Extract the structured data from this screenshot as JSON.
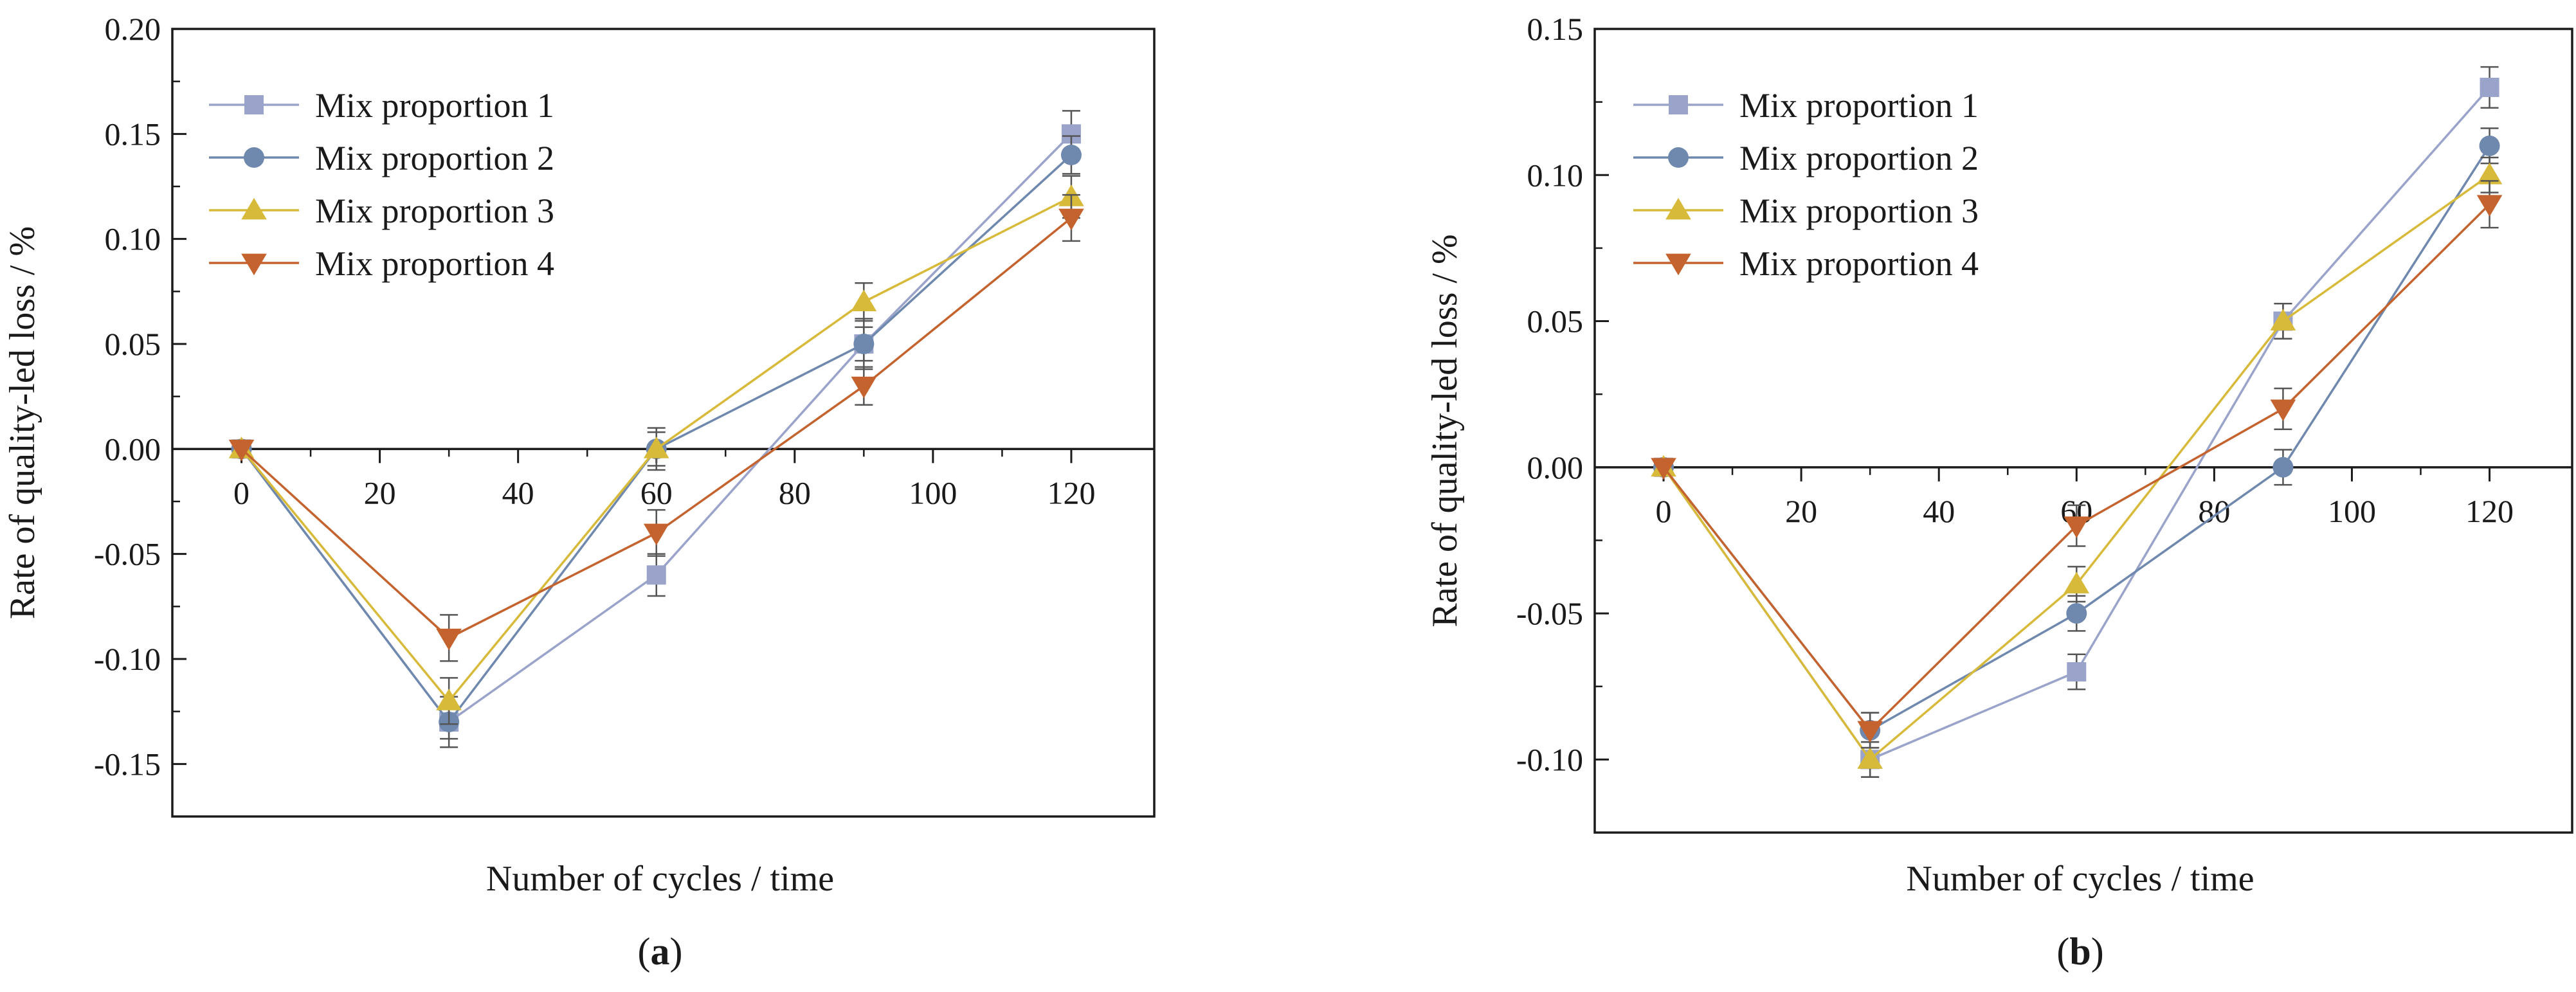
{
  "chart_data": [
    {
      "type": "line",
      "panel_label": "a",
      "xlabel": "Number of cycles / time",
      "ylabel": "Rate of quality-led loss / %",
      "x": [
        0,
        30,
        60,
        90,
        120
      ],
      "xticks": [
        0,
        20,
        40,
        60,
        80,
        100,
        120
      ],
      "xtick_labels": [
        "0",
        "20",
        "40",
        "60",
        "80",
        "100",
        "120"
      ],
      "yticks": [
        -0.15,
        -0.1,
        -0.05,
        0.0,
        0.05,
        0.1,
        0.15,
        0.2
      ],
      "ytick_labels": [
        "-0.15",
        "-0.10",
        "-0.05",
        "0.00",
        "0.05",
        "0.10",
        "0.15",
        "0.20"
      ],
      "xlim": [
        -10,
        132
      ],
      "ylim": [
        -0.175,
        0.2
      ],
      "legend_position": "top-left",
      "series": [
        {
          "name": "Mix proportion 1",
          "marker": "square",
          "color": "#9aa3c9",
          "values": [
            0,
            -0.13,
            -0.06,
            0.05,
            0.15
          ],
          "errors": [
            0,
            0.012,
            0.01,
            0.008,
            0.011
          ]
        },
        {
          "name": "Mix proportion 2",
          "marker": "circle",
          "color": "#6f88ad",
          "values": [
            0,
            -0.13,
            0.0,
            0.05,
            0.14
          ],
          "errors": [
            0,
            0.008,
            0.008,
            0.012,
            0.009
          ]
        },
        {
          "name": "Mix proportion 3",
          "marker": "triangle-up",
          "color": "#d8ba3a",
          "values": [
            0,
            -0.12,
            0.0,
            0.07,
            0.12
          ],
          "errors": [
            0,
            0.011,
            0.01,
            0.009,
            0.01
          ]
        },
        {
          "name": "Mix proportion 4",
          "marker": "triangle-down",
          "color": "#c4632e",
          "values": [
            0,
            -0.09,
            -0.04,
            0.03,
            0.11
          ],
          "errors": [
            0,
            0.011,
            0.011,
            0.009,
            0.011
          ]
        }
      ]
    },
    {
      "type": "line",
      "panel_label": "b",
      "xlabel": "Number of  cycles / time",
      "ylabel": "Rate of quality-led loss / %",
      "x": [
        0,
        30,
        60,
        90,
        120
      ],
      "xticks": [
        0,
        20,
        40,
        60,
        80,
        100,
        120
      ],
      "xtick_labels": [
        "0",
        "20",
        "40",
        "60",
        "80",
        "100",
        "120"
      ],
      "yticks": [
        -0.1,
        -0.05,
        0.0,
        0.05,
        0.1,
        0.15
      ],
      "ytick_labels": [
        "-0.10",
        "-0.05",
        "0.00",
        "0.05",
        "0.10",
        "0.15"
      ],
      "xlim": [
        -10,
        132
      ],
      "ylim": [
        -0.125,
        0.15
      ],
      "legend_position": "top-left",
      "series": [
        {
          "name": "Mix proportion 1",
          "marker": "square",
          "color": "#9aa3c9",
          "values": [
            0,
            -0.1,
            -0.07,
            0.05,
            0.13
          ],
          "errors": [
            0,
            0.006,
            0.006,
            0.006,
            0.007
          ]
        },
        {
          "name": "Mix proportion 2",
          "marker": "circle",
          "color": "#6f88ad",
          "values": [
            0,
            -0.09,
            -0.05,
            0.0,
            0.11
          ],
          "errors": [
            0,
            0.006,
            0.006,
            0.006,
            0.006
          ]
        },
        {
          "name": "Mix proportion 3",
          "marker": "triangle-up",
          "color": "#d8ba3a",
          "values": [
            0,
            -0.1,
            -0.04,
            0.05,
            0.1
          ],
          "errors": [
            0,
            0.006,
            0.006,
            0.006,
            0.006
          ]
        },
        {
          "name": "Mix proportion 4",
          "marker": "triangle-down",
          "color": "#c4632e",
          "values": [
            0,
            -0.09,
            -0.02,
            0.02,
            0.09
          ],
          "errors": [
            0,
            0.006,
            0.007,
            0.007,
            0.008
          ]
        }
      ]
    }
  ]
}
